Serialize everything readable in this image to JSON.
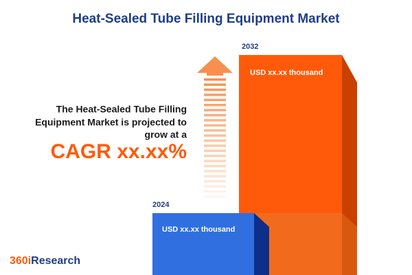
{
  "header": {
    "title": "Heat-Sealed Tube Filling Equipment Market"
  },
  "message": {
    "lines": [
      "The Heat-Sealed Tube Filling",
      "Equipment Market is projected to",
      "grow at a"
    ],
    "cagr": "CAGR xx.xx%"
  },
  "bars": [
    {
      "year": "2024",
      "label": "USD xx.xx thousand"
    },
    {
      "year": "2032",
      "label": "USD xx.xx thousand"
    }
  ],
  "logo": {
    "prefix": "360i",
    "suffix": "Research"
  }
}
